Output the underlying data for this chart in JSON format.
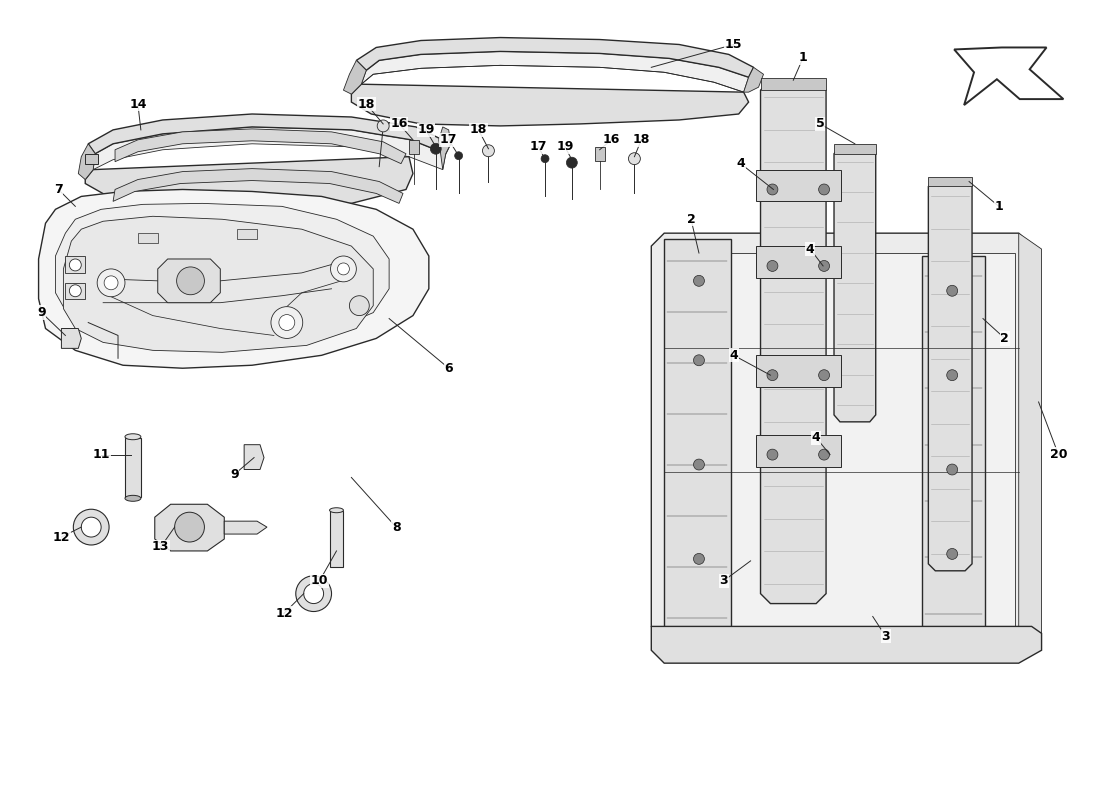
{
  "bg_color": "#ffffff",
  "line_color": "#2a2a2a",
  "fill_light": "#f0f0f0",
  "fill_mid": "#e0e0e0",
  "fill_dark": "#c8c8c8",
  "fig_width": 11.0,
  "fig_height": 8.0,
  "label_fontsize": 9,
  "label_fontsize_small": 8
}
